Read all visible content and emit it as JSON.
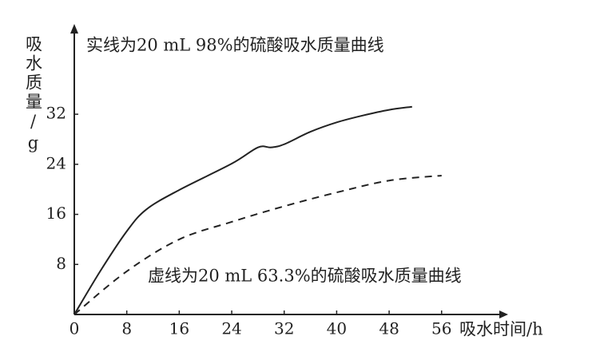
{
  "chart_data": {
    "type": "line",
    "y_label": "吸水质量/g",
    "x_label": "吸水时间/h",
    "annotations": [
      "实线为20 mL 98%的硫酸吸水质量曲线",
      "虚线为20 mL 63.3%的硫酸吸水质量曲线"
    ],
    "xlim": [
      0,
      65
    ],
    "ylim": [
      0,
      45
    ],
    "xticks": [
      0,
      8,
      16,
      24,
      32,
      40,
      48,
      56
    ],
    "yticks": [
      8,
      16,
      24,
      32
    ],
    "series": [
      {
        "color": "#222222",
        "style": "solid",
        "x": [
          0,
          4,
          8,
          11,
          16,
          24,
          28,
          30,
          32,
          36,
          40,
          44,
          48,
          51.5
        ],
        "values": [
          0,
          7,
          13.3,
          16.8,
          19.9,
          24.1,
          26.7,
          26.7,
          27.2,
          29.2,
          30.7,
          31.8,
          32.7,
          33.2
        ]
      },
      {
        "color": "#222222",
        "style": "dashed",
        "x": [
          0,
          8,
          16,
          24,
          32,
          40,
          48,
          56
        ],
        "values": [
          0,
          6.9,
          12,
          14.8,
          17.3,
          19.5,
          21.4,
          22.2
        ]
      }
    ]
  }
}
